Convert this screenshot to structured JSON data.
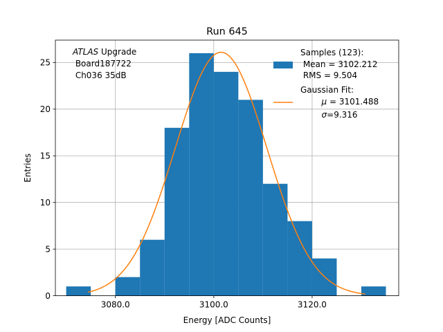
{
  "chart_data": {
    "type": "bar",
    "title": "Run 645",
    "xlabel": "Energy [ADC Counts]",
    "ylabel": "Entries",
    "xlim": [
      3067.8,
      3137.6
    ],
    "ylim": [
      0,
      27.4
    ],
    "xticks": [
      3080.0,
      3100.0,
      3120.0
    ],
    "xtick_labels": [
      "3080.0",
      "3100.0",
      "3120.0"
    ],
    "yticks": [
      0,
      5,
      10,
      15,
      20,
      25
    ],
    "ytick_labels": [
      "0",
      "5",
      "10",
      "15",
      "20",
      "25"
    ],
    "grid": true,
    "histogram": {
      "bin_edges": [
        3070,
        3075,
        3080,
        3085,
        3090,
        3095,
        3100,
        3105,
        3110,
        3115,
        3120,
        3125,
        3130,
        3135
      ],
      "counts": [
        1,
        0,
        2,
        6,
        18,
        26,
        24,
        21,
        12,
        8,
        4,
        0,
        1
      ],
      "color": "#1f77b4"
    },
    "fit": {
      "mu": 3101.488,
      "sigma": 9.316,
      "amplitude": 26.1,
      "x_range": [
        3074.4,
        3130.8
      ],
      "color": "#ff7f0e"
    },
    "annotation": {
      "italic": "ATLAS",
      "rest": " Upgrade",
      "line2": " Board187722",
      "line3": " Ch036 35dB"
    },
    "legend": {
      "position": "top-right",
      "hist_line1": "Samples (123):",
      "hist_line2": " Mean = 3102.212",
      "hist_line3": " RMS = 9.504",
      "fit_line1": "Gaussian Fit:",
      "fit_mu_symbol": "μ",
      "fit_mu_value": " = 3101.488",
      "fit_sigma_symbol": "σ",
      "fit_sigma_value": "=9.316"
    }
  }
}
